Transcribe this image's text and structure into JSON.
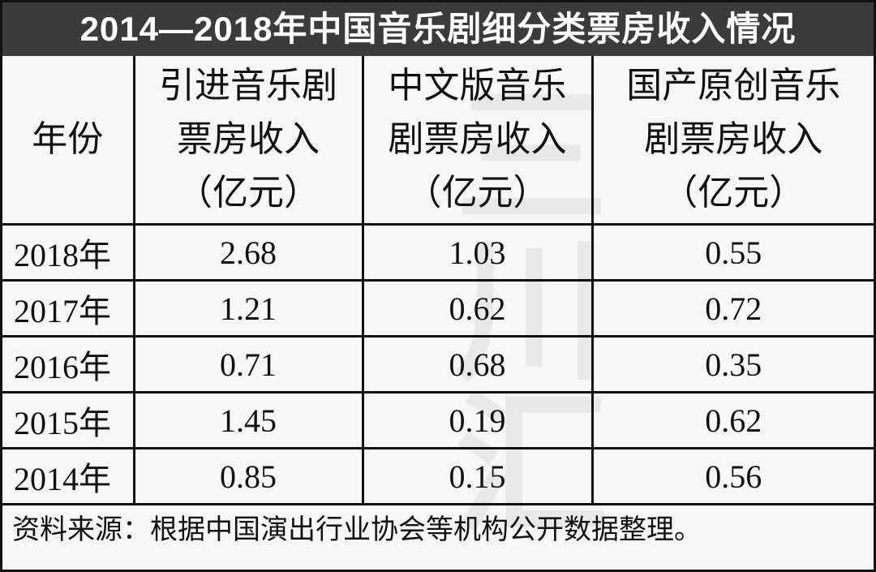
{
  "title": "2014—2018年中国音乐剧细分类票房收入情况",
  "watermark": "三川汇",
  "table": {
    "header": [
      [
        "年份"
      ],
      [
        "引进音乐剧",
        "票房收入",
        "（亿元）"
      ],
      [
        "中文版音乐",
        "剧票房收入",
        "（亿元）"
      ],
      [
        "国产原创音乐",
        "剧票房收入",
        "（亿元）"
      ]
    ],
    "rows": [
      [
        "2018年",
        2.68,
        1.03,
        0.55
      ],
      [
        "2017年",
        1.21,
        0.62,
        0.72
      ],
      [
        "2016年",
        0.71,
        0.68,
        0.35
      ],
      [
        "2015年",
        1.45,
        0.19,
        0.62
      ],
      [
        "2014年",
        0.85,
        0.15,
        0.56
      ]
    ]
  },
  "source": "资料来源：根据中国演出行业协会等机构公开数据整理。"
}
